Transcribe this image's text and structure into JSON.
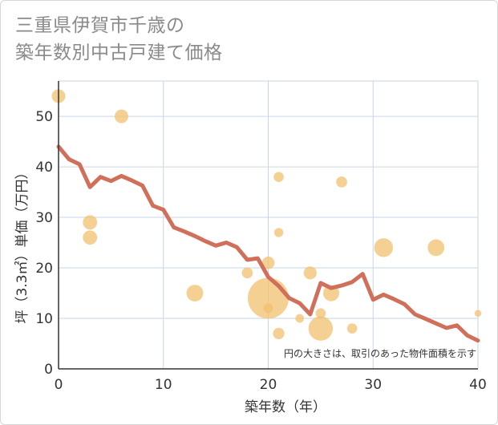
{
  "title_line1": "三重県伊賀市千歳の",
  "title_line2": "築年数別中古戸建て価格",
  "chart_data": {
    "type": "scatter",
    "xlabel": "築年数（年）",
    "ylabel": "坪（3.3㎡）単価（万円）",
    "xlim": [
      0,
      40
    ],
    "ylim": [
      0,
      57
    ],
    "xticks": [
      0,
      10,
      20,
      30,
      40
    ],
    "yticks": [
      0,
      10,
      20,
      30,
      40,
      50
    ],
    "grid": true,
    "note": "円の大きさは、取引のあった物件面積を示す",
    "bubble_color": "#f2c06f",
    "line_color": "#d0705a",
    "points": [
      {
        "x": 0,
        "y": 54,
        "size": 1
      },
      {
        "x": 6,
        "y": 50,
        "size": 1
      },
      {
        "x": 3,
        "y": 29,
        "size": 1.1
      },
      {
        "x": 3,
        "y": 26,
        "size": 1.1
      },
      {
        "x": 13,
        "y": 15,
        "size": 1.5
      },
      {
        "x": 18,
        "y": 19,
        "size": 0.65
      },
      {
        "x": 20,
        "y": 21,
        "size": 0.85
      },
      {
        "x": 20,
        "y": 14,
        "size": 9
      },
      {
        "x": 20,
        "y": 12,
        "size": 0.5
      },
      {
        "x": 21,
        "y": 38,
        "size": 0.55
      },
      {
        "x": 21,
        "y": 27,
        "size": 0.45
      },
      {
        "x": 21,
        "y": 7,
        "size": 0.7
      },
      {
        "x": 23,
        "y": 10,
        "size": 0.4
      },
      {
        "x": 24,
        "y": 19,
        "size": 0.9
      },
      {
        "x": 25,
        "y": 11,
        "size": 0.55
      },
      {
        "x": 25,
        "y": 8,
        "size": 3.2
      },
      {
        "x": 26,
        "y": 15,
        "size": 1.4
      },
      {
        "x": 27,
        "y": 37,
        "size": 0.65
      },
      {
        "x": 28,
        "y": 8,
        "size": 0.55
      },
      {
        "x": 31,
        "y": 24,
        "size": 1.9
      },
      {
        "x": 36,
        "y": 24,
        "size": 1.5
      },
      {
        "x": 40,
        "y": 11,
        "size": 0.25
      }
    ],
    "trend": {
      "x": [
        0,
        1,
        2,
        3,
        4,
        5,
        6,
        7,
        8,
        9,
        10,
        11,
        12,
        13,
        14,
        15,
        16,
        17,
        18,
        19,
        20,
        21,
        22,
        23,
        24,
        25,
        26,
        27,
        28,
        29,
        30,
        31,
        32,
        33,
        34,
        35,
        36,
        37,
        38,
        39,
        40
      ],
      "y": [
        44,
        41.5,
        40.5,
        36,
        38,
        37.2,
        38.2,
        37.3,
        36.3,
        32.3,
        31.5,
        28,
        27.2,
        26.3,
        25.3,
        24.4,
        25,
        24.1,
        21.6,
        21.9,
        18.2,
        16.4,
        14,
        13,
        10.8,
        17,
        16,
        16.5,
        17.2,
        18.8,
        13.7,
        14.7,
        13.8,
        12.8,
        10.8,
        9.9,
        9,
        8.1,
        8.6,
        6.6,
        5.6
      ]
    }
  }
}
